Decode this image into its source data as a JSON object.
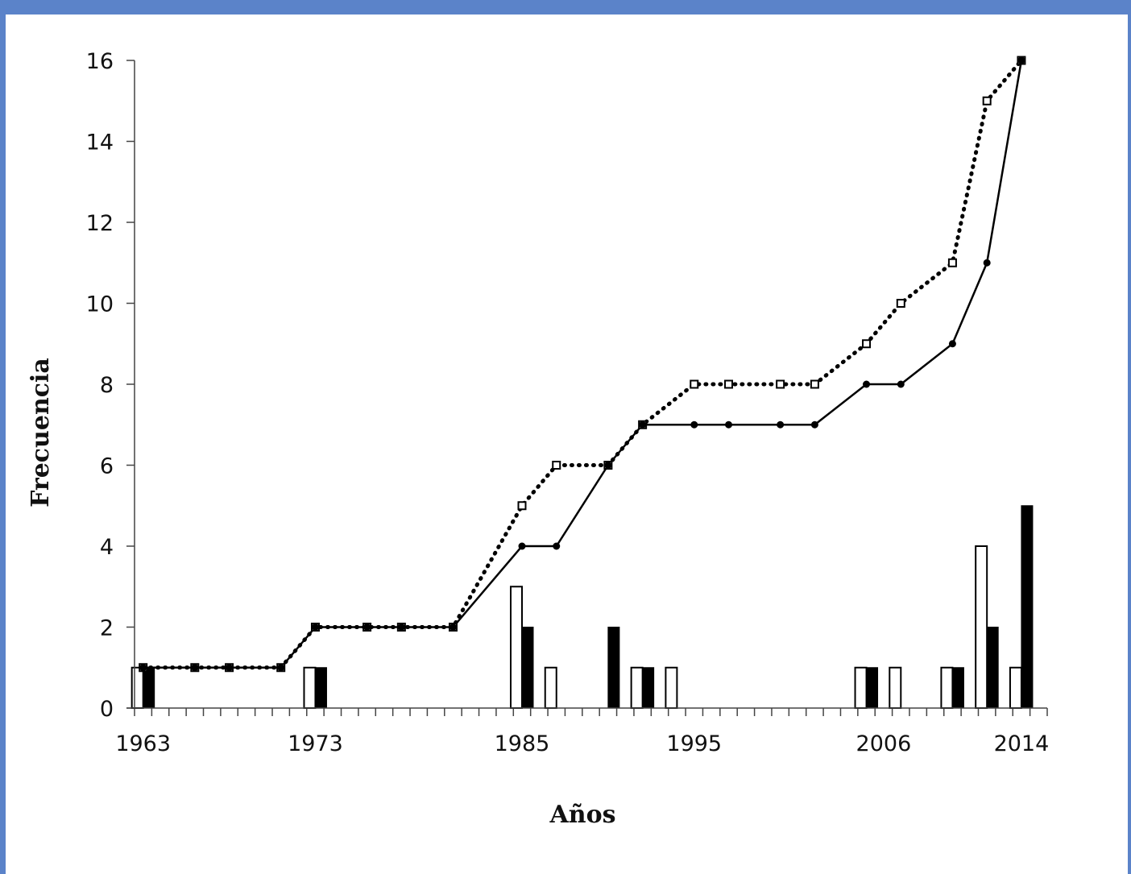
{
  "colors": {
    "frame": "#5b83c9",
    "axis": "#444444",
    "bar_white_fill": "#ffffff",
    "bar_black_fill": "#000000",
    "line": "#000000"
  },
  "chart_data": {
    "type": "bar",
    "title": "",
    "xlabel": "Años",
    "ylabel": "Frecuencia",
    "ylim": [
      0,
      16
    ],
    "yticks": [
      "0",
      "2",
      "4",
      "6",
      "8",
      "10",
      "12",
      "14",
      "16"
    ],
    "x_tick_labels": [
      "1963",
      "1973",
      "1985",
      "1995",
      "2006",
      "2014"
    ],
    "legend": "none",
    "grid": false,
    "bar_series": [
      {
        "style": "white",
        "points": [
          {
            "x": 1963,
            "y": 1
          },
          {
            "x": 1973,
            "y": 1
          },
          {
            "x": 1985,
            "y": 3
          },
          {
            "x": 1987,
            "y": 1
          },
          {
            "x": 1992,
            "y": 1
          },
          {
            "x": 1994,
            "y": 1
          },
          {
            "x": 2005,
            "y": 1
          },
          {
            "x": 2007,
            "y": 1
          },
          {
            "x": 2010,
            "y": 1
          },
          {
            "x": 2012,
            "y": 4
          },
          {
            "x": 2014,
            "y": 1
          }
        ]
      },
      {
        "style": "black",
        "points": [
          {
            "x": 1963,
            "y": 1
          },
          {
            "x": 1973,
            "y": 1
          },
          {
            "x": 1985,
            "y": 2
          },
          {
            "x": 1990,
            "y": 2
          },
          {
            "x": 1992,
            "y": 1
          },
          {
            "x": 2005,
            "y": 1
          },
          {
            "x": 2010,
            "y": 1
          },
          {
            "x": 2012,
            "y": 2
          },
          {
            "x": 2014,
            "y": 5
          }
        ]
      }
    ],
    "line_series": [
      {
        "style": "dotted-open-square",
        "points": [
          {
            "x": 1963,
            "y": 1
          },
          {
            "x": 1966,
            "y": 1
          },
          {
            "x": 1968,
            "y": 1
          },
          {
            "x": 1971,
            "y": 1
          },
          {
            "x": 1973,
            "y": 2
          },
          {
            "x": 1976,
            "y": 2
          },
          {
            "x": 1978,
            "y": 2
          },
          {
            "x": 1981,
            "y": 2
          },
          {
            "x": 1985,
            "y": 5
          },
          {
            "x": 1987,
            "y": 6
          },
          {
            "x": 1990,
            "y": 6
          },
          {
            "x": 1992,
            "y": 7
          },
          {
            "x": 1995,
            "y": 8
          },
          {
            "x": 1997,
            "y": 8
          },
          {
            "x": 2000,
            "y": 8
          },
          {
            "x": 2002,
            "y": 8
          },
          {
            "x": 2005,
            "y": 9
          },
          {
            "x": 2007,
            "y": 10
          },
          {
            "x": 2010,
            "y": 11
          },
          {
            "x": 2012,
            "y": 15
          },
          {
            "x": 2014,
            "y": 16
          }
        ]
      },
      {
        "style": "solid-dot",
        "points": [
          {
            "x": 1963,
            "y": 1
          },
          {
            "x": 1966,
            "y": 1
          },
          {
            "x": 1968,
            "y": 1
          },
          {
            "x": 1971,
            "y": 1
          },
          {
            "x": 1973,
            "y": 2
          },
          {
            "x": 1976,
            "y": 2
          },
          {
            "x": 1978,
            "y": 2
          },
          {
            "x": 1981,
            "y": 2
          },
          {
            "x": 1985,
            "y": 4
          },
          {
            "x": 1987,
            "y": 4
          },
          {
            "x": 1990,
            "y": 6
          },
          {
            "x": 1992,
            "y": 7
          },
          {
            "x": 1995,
            "y": 7
          },
          {
            "x": 1997,
            "y": 7
          },
          {
            "x": 2000,
            "y": 7
          },
          {
            "x": 2002,
            "y": 7
          },
          {
            "x": 2005,
            "y": 8
          },
          {
            "x": 2007,
            "y": 8
          },
          {
            "x": 2010,
            "y": 9
          },
          {
            "x": 2012,
            "y": 11
          },
          {
            "x": 2014,
            "y": 16
          }
        ]
      }
    ]
  }
}
